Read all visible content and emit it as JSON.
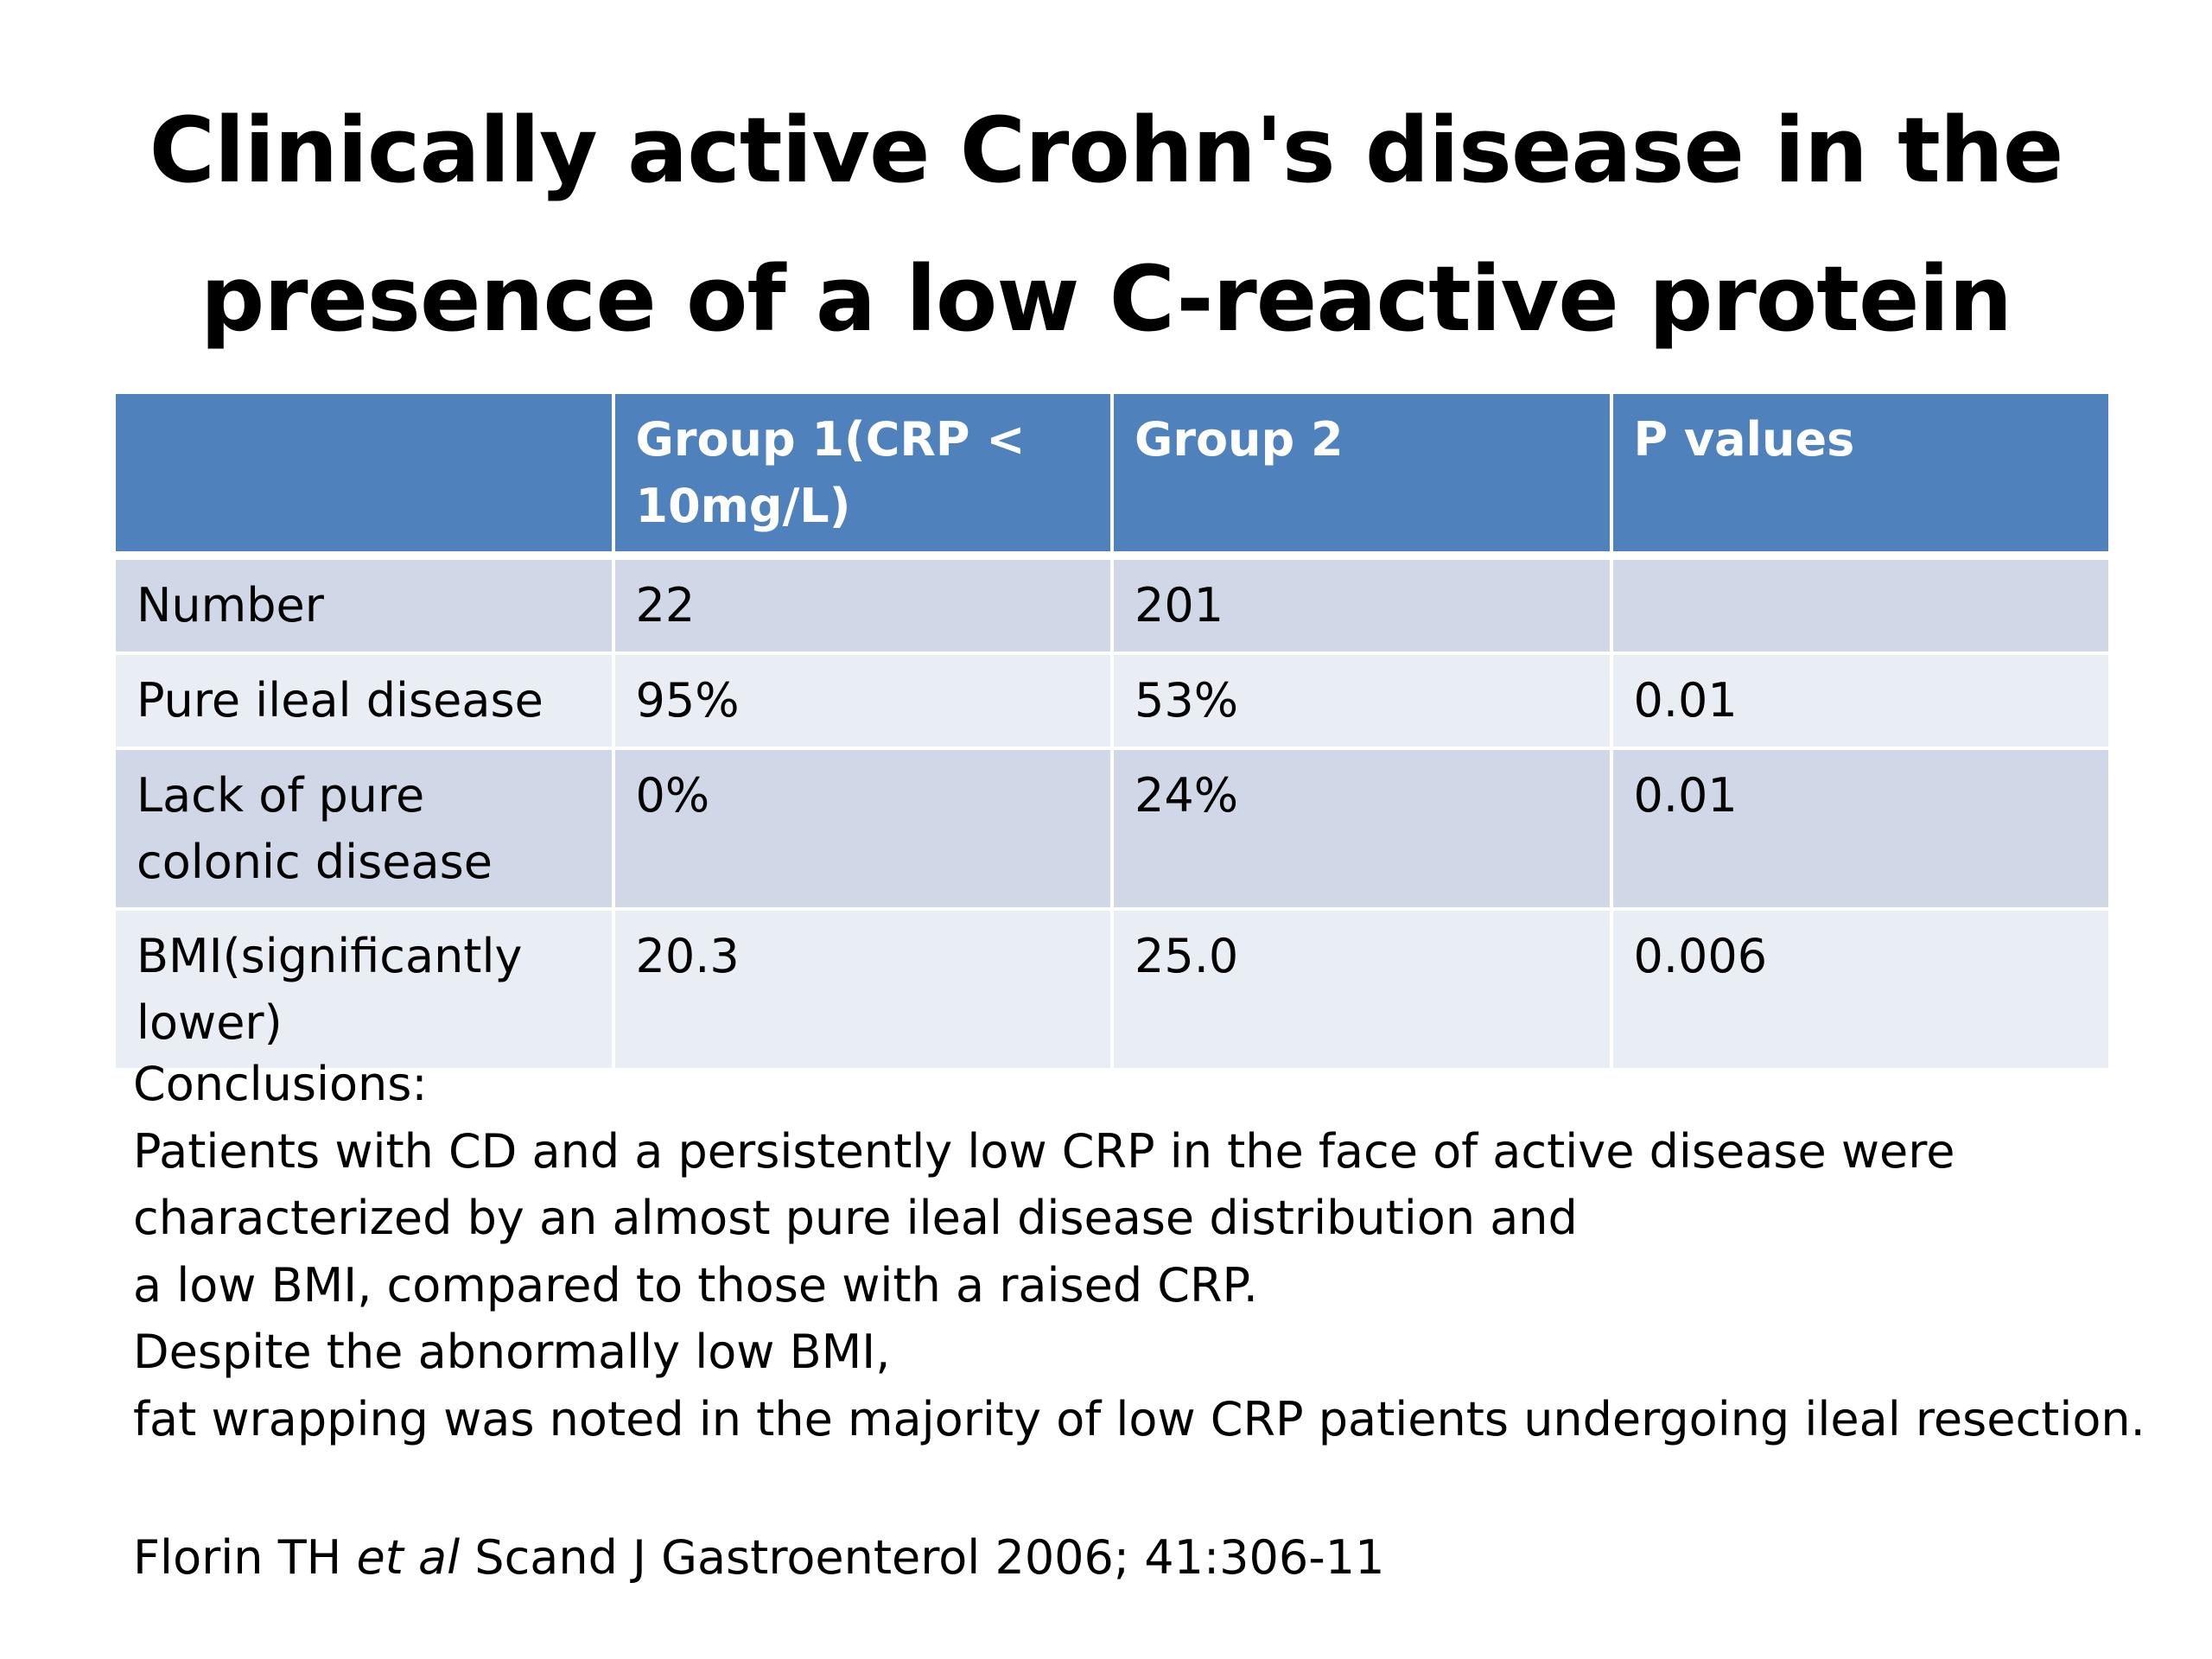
{
  "title": {
    "line1": "Clinically active Crohn's disease in the",
    "line2": "presence of a low C-reactive protein"
  },
  "table": {
    "headers": [
      "",
      "Group 1(CRP < 10mg/L)",
      "Group 2",
      "P values"
    ],
    "rows": [
      [
        "Number",
        "22",
        "201",
        ""
      ],
      [
        "Pure ileal disease",
        "95%",
        "53%",
        "0.01"
      ],
      [
        "Lack of pure colonic disease",
        "0%",
        "24%",
        "0.01"
      ],
      [
        "BMI(significantly lower)",
        "20.3",
        "25.0",
        "0.006"
      ]
    ],
    "colors": {
      "header_bg": "#4f81bd",
      "row_dark": "#d0d8e8",
      "row_light": "#e9edf4"
    }
  },
  "conclusions": {
    "heading": "Conclusions:",
    "lines": [
      "Patients with CD and a persistently low CRP in the face of active disease were",
      "characterized by an almost pure ileal disease distribution and",
      "a low BMI, compared to those with a raised CRP.",
      "Despite the abnormally low BMI,",
      "fat wrapping was noted in the majority of low CRP patients undergoing ileal resection."
    ]
  },
  "citation": {
    "author": "Florin TH",
    "et_al": "et al",
    "source": "Scand J Gastroenterol 2006; 41:306-11"
  }
}
